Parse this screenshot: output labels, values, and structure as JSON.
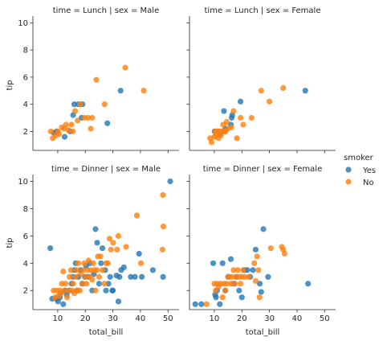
{
  "chart_data": {
    "type": "scatter",
    "x_field": "total_bill",
    "y_field": "tip",
    "hue_field": "smoker",
    "xlabel": "total_bill",
    "ylabel": "tip",
    "xlim": [
      1,
      54
    ],
    "ylim": [
      0.6,
      10.5
    ],
    "xticks": [
      10,
      20,
      30,
      40,
      50
    ],
    "yticks": [
      2,
      4,
      6,
      8,
      10
    ],
    "colors": {
      "Yes": "#1f77b4",
      "No": "#ff7f0e"
    },
    "legend": {
      "title": "smoker",
      "position": "center-right",
      "entries": [
        "Yes",
        "No"
      ]
    },
    "facets": [
      {
        "title": "time = Lunch | sex = Male",
        "series": [
          {
            "name": "Yes",
            "points": [
              [
                8.6,
                1.9
              ],
              [
                9.6,
                2.0
              ],
              [
                12.5,
                1.6
              ],
              [
                14.5,
                2.0
              ],
              [
                15.6,
                3.2
              ],
              [
                16.0,
                4.0
              ],
              [
                17.5,
                4.0
              ],
              [
                18.6,
                3.0
              ],
              [
                19.0,
                4.0
              ],
              [
                28.0,
                2.6
              ],
              [
                32.8,
                5.0
              ]
            ]
          },
          {
            "name": "No",
            "points": [
              [
                7.5,
                2.0
              ],
              [
                8.2,
                1.5
              ],
              [
                9.3,
                1.7
              ],
              [
                10.0,
                2.0
              ],
              [
                10.5,
                1.8
              ],
              [
                11.5,
                2.3
              ],
              [
                12.3,
                2.2
              ],
              [
                13.0,
                2.5
              ],
              [
                13.8,
                2.1
              ],
              [
                15.0,
                2.5
              ],
              [
                15.5,
                2.0
              ],
              [
                16.3,
                3.5
              ],
              [
                17.2,
                2.8
              ],
              [
                18.2,
                4.0
              ],
              [
                19.7,
                3.0
              ],
              [
                21.0,
                3.0
              ],
              [
                22.0,
                2.2
              ],
              [
                22.5,
                3.0
              ],
              [
                24.0,
                5.8
              ],
              [
                27.0,
                4.0
              ],
              [
                34.5,
                6.7
              ],
              [
                41.2,
                5.0
              ]
            ]
          }
        ]
      },
      {
        "title": "time = Lunch | sex = Female",
        "series": [
          {
            "name": "Yes",
            "points": [
              [
                10.1,
                2.0
              ],
              [
                11.4,
                2.0
              ],
              [
                12.0,
                1.8
              ],
              [
                13.5,
                3.5
              ],
              [
                13.8,
                2.0
              ],
              [
                14.0,
                2.2
              ],
              [
                16.0,
                2.5
              ],
              [
                16.3,
                3.0
              ],
              [
                16.5,
                3.2
              ],
              [
                19.5,
                4.2
              ],
              [
                43.0,
                5.0
              ]
            ]
          },
          {
            "name": "No",
            "points": [
              [
                8.5,
                1.5
              ],
              [
                9.0,
                1.2
              ],
              [
                10.0,
                1.6
              ],
              [
                10.3,
                2.0
              ],
              [
                10.6,
                1.7
              ],
              [
                11.0,
                2.0
              ],
              [
                11.5,
                1.5
              ],
              [
                12.0,
                2.0
              ],
              [
                12.4,
                1.7
              ],
              [
                12.8,
                2.0
              ],
              [
                13.2,
                2.5
              ],
              [
                13.6,
                2.0
              ],
              [
                14.0,
                2.0
              ],
              [
                14.5,
                2.7
              ],
              [
                15.0,
                2.2
              ],
              [
                16.2,
                2.3
              ],
              [
                17.0,
                3.5
              ],
              [
                18.2,
                1.5
              ],
              [
                19.5,
                3.0
              ],
              [
                20.5,
                2.5
              ],
              [
                23.5,
                3.0
              ],
              [
                27.0,
                5.0
              ],
              [
                30.0,
                4.2
              ],
              [
                35.0,
                5.2
              ]
            ]
          }
        ]
      },
      {
        "title": "time = Dinner | sex = Male",
        "series": [
          {
            "name": "Yes",
            "points": [
              [
                7.3,
                5.1
              ],
              [
                8.0,
                1.4
              ],
              [
                9.6,
                1.4
              ],
              [
                10.1,
                1.2
              ],
              [
                10.8,
                1.5
              ],
              [
                11.0,
                1.8
              ],
              [
                12.0,
                1.0
              ],
              [
                12.7,
                2.0
              ],
              [
                13.3,
                1.7
              ],
              [
                14.3,
                2.0
              ],
              [
                15.0,
                2.5
              ],
              [
                15.5,
                3.0
              ],
              [
                16.0,
                3.5
              ],
              [
                16.5,
                4.0
              ],
              [
                17.0,
                2.0
              ],
              [
                17.5,
                3.0
              ],
              [
                18.3,
                3.5
              ],
              [
                19.0,
                2.5
              ],
              [
                19.8,
                3.0
              ],
              [
                20.3,
                3.8
              ],
              [
                21.0,
                3.0
              ],
              [
                21.7,
                4.0
              ],
              [
                22.5,
                2.0
              ],
              [
                23.1,
                3.2
              ],
              [
                23.7,
                6.5
              ],
              [
                24.3,
                5.5
              ],
              [
                25.0,
                2.5
              ],
              [
                25.7,
                4.0
              ],
              [
                26.2,
                5.1
              ],
              [
                27.2,
                3.5
              ],
              [
                27.5,
                2.0
              ],
              [
                28.4,
                2.5
              ],
              [
                29.0,
                3.0
              ],
              [
                29.8,
                2.0
              ],
              [
                30.0,
                2.0
              ],
              [
                31.3,
                3.1
              ],
              [
                32.0,
                1.2
              ],
              [
                32.4,
                3.0
              ],
              [
                33.0,
                3.5
              ],
              [
                34.0,
                3.7
              ],
              [
                36.5,
                3.0
              ],
              [
                38.0,
                3.0
              ],
              [
                39.5,
                4.7
              ],
              [
                40.5,
                3.0
              ],
              [
                44.5,
                3.5
              ],
              [
                48.2,
                3.0
              ],
              [
                50.8,
                10.0
              ]
            ]
          },
          {
            "name": "No",
            "points": [
              [
                8.5,
                2.0
              ],
              [
                9.0,
                1.5
              ],
              [
                9.7,
                2.0
              ],
              [
                10.3,
                1.6
              ],
              [
                10.8,
                2.0
              ],
              [
                11.2,
                1.8
              ],
              [
                11.5,
                2.5
              ],
              [
                12.0,
                3.4
              ],
              [
                12.4,
                2.0
              ],
              [
                12.8,
                2.5
              ],
              [
                13.4,
                1.5
              ],
              [
                14.0,
                2.0
              ],
              [
                14.3,
                3.0
              ],
              [
                14.8,
                3.5
              ],
              [
                15.2,
                2.0
              ],
              [
                15.6,
                2.5
              ],
              [
                16.0,
                1.8
              ],
              [
                16.4,
                3.0
              ],
              [
                16.9,
                3.5
              ],
              [
                17.2,
                2.0
              ],
              [
                17.5,
                4.0
              ],
              [
                18.0,
                2.0
              ],
              [
                18.4,
                3.2
              ],
              [
                18.8,
                2.5
              ],
              [
                19.2,
                3.5
              ],
              [
                19.6,
                4.0
              ],
              [
                20.0,
                3.0
              ],
              [
                20.4,
                2.5
              ],
              [
                20.8,
                3.5
              ],
              [
                21.2,
                4.2
              ],
              [
                21.6,
                3.0
              ],
              [
                22.0,
                3.5
              ],
              [
                22.5,
                2.8
              ],
              [
                22.9,
                4.0
              ],
              [
                23.3,
                3.5
              ],
              [
                23.7,
                2.0
              ],
              [
                24.2,
                3.5
              ],
              [
                24.6,
                4.5
              ],
              [
                25.0,
                3.0
              ],
              [
                25.5,
                4.5
              ],
              [
                26.2,
                3.5
              ],
              [
                26.9,
                2.5
              ],
              [
                27.5,
                4.0
              ],
              [
                28.2,
                4.0
              ],
              [
                28.8,
                5.8
              ],
              [
                29.3,
                5.0
              ],
              [
                30.1,
                5.5
              ],
              [
                31.5,
                5.0
              ],
              [
                32.0,
                6.0
              ],
              [
                34.8,
                5.2
              ],
              [
                38.7,
                7.5
              ],
              [
                40.2,
                4.0
              ],
              [
                48.3,
                6.7
              ],
              [
                48.2,
                9.0
              ],
              [
                48.0,
                5.0
              ]
            ]
          }
        ]
      },
      {
        "title": "time = Dinner | sex = Female",
        "series": [
          {
            "name": "Yes",
            "points": [
              [
                3.1,
                1.0
              ],
              [
                5.3,
                1.0
              ],
              [
                9.6,
                4.0
              ],
              [
                10.3,
                1.7
              ],
              [
                10.6,
                1.5
              ],
              [
                11.0,
                2.0
              ],
              [
                12.0,
                1.0
              ],
              [
                13.0,
                4.0
              ],
              [
                14.0,
                2.0
              ],
              [
                15.0,
                3.0
              ],
              [
                16.0,
                4.3
              ],
              [
                17.0,
                2.5
              ],
              [
                18.0,
                3.0
              ],
              [
                19.0,
                2.0
              ],
              [
                20.0,
                1.5
              ],
              [
                21.0,
                3.5
              ],
              [
                22.0,
                3.5
              ],
              [
                23.0,
                3.0
              ],
              [
                24.0,
                3.5
              ],
              [
                25.0,
                5.0
              ],
              [
                26.5,
                2.5
              ],
              [
                27.0,
                1.9
              ],
              [
                27.8,
                6.5
              ],
              [
                29.5,
                3.0
              ],
              [
                44.0,
                2.5
              ]
            ]
          },
          {
            "name": "No",
            "points": [
              [
                7.2,
                1.0
              ],
              [
                10.0,
                2.5
              ],
              [
                10.5,
                2.0
              ],
              [
                11.0,
                2.5
              ],
              [
                11.6,
                2.3
              ],
              [
                12.2,
                2.5
              ],
              [
                13.0,
                1.5
              ],
              [
                13.5,
                2.5
              ],
              [
                14.0,
                2.0
              ],
              [
                14.5,
                2.5
              ],
              [
                15.0,
                3.0
              ],
              [
                15.5,
                3.0
              ],
              [
                16.0,
                2.5
              ],
              [
                16.5,
                3.0
              ],
              [
                17.0,
                3.5
              ],
              [
                17.5,
                2.5
              ],
              [
                18.0,
                3.0
              ],
              [
                18.5,
                3.5
              ],
              [
                19.0,
                3.0
              ],
              [
                19.5,
                2.5
              ],
              [
                20.0,
                3.0
              ],
              [
                20.5,
                3.5
              ],
              [
                21.0,
                3.0
              ],
              [
                22.5,
                3.0
              ],
              [
                24.5,
                4.0
              ],
              [
                25.0,
                2.7
              ],
              [
                25.5,
                4.5
              ],
              [
                26.0,
                3.5
              ],
              [
                26.4,
                1.5
              ],
              [
                30.5,
                5.1
              ],
              [
                34.5,
                5.2
              ],
              [
                35.0,
                5.0
              ],
              [
                35.5,
                4.7
              ]
            ]
          }
        ]
      }
    ]
  }
}
